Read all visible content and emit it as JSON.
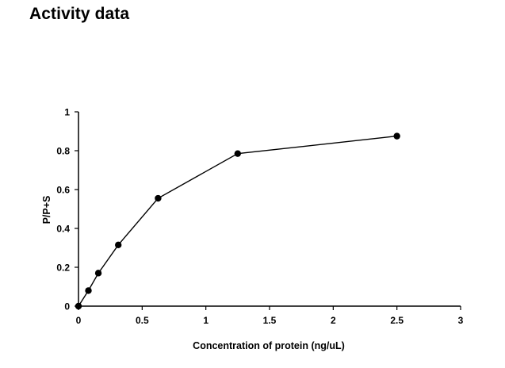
{
  "page": {
    "heading": "Activity data"
  },
  "chart_data": {
    "type": "line",
    "title": "",
    "xlabel": "Concentration of protein (ng/uL)",
    "ylabel": "P/P+S",
    "xlim": [
      0,
      3
    ],
    "ylim": [
      0,
      1
    ],
    "x_ticks": [
      0,
      0.5,
      1,
      1.5,
      2,
      2.5,
      3
    ],
    "x_tick_labels": [
      "0",
      "0.5",
      "1",
      "1.5",
      "2",
      "2.5",
      "3"
    ],
    "y_ticks": [
      0,
      0.2,
      0.4,
      0.6,
      0.8,
      1
    ],
    "y_tick_labels": [
      "0",
      "0.2",
      "0.4",
      "0.6",
      "0.8",
      "1"
    ],
    "grid": false,
    "legend": "none",
    "series": [
      {
        "x": [
          0,
          0.078,
          0.156,
          0.3125,
          0.625,
          1.25,
          2.5
        ],
        "y": [
          0,
          0.08,
          0.17,
          0.315,
          0.555,
          0.785,
          0.875
        ],
        "color": "#000000",
        "marker": "circle"
      }
    ]
  }
}
